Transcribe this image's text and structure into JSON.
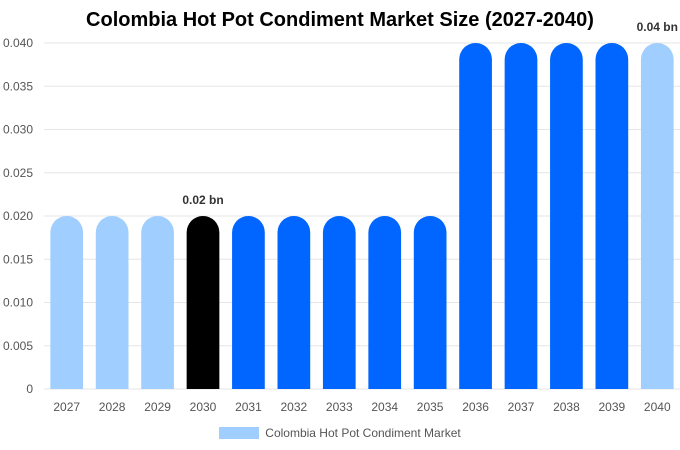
{
  "chart_data": {
    "type": "bar",
    "title": "Colombia Hot Pot Condiment Market Size (2027-2040)",
    "xlabel": "",
    "ylabel": "",
    "categories": [
      "2027",
      "2028",
      "2029",
      "2030",
      "2031",
      "2032",
      "2033",
      "2034",
      "2035",
      "2036",
      "2037",
      "2038",
      "2039",
      "2040"
    ],
    "series": [
      {
        "name": "Colombia Hot Pot Condiment Market",
        "values": [
          0.02,
          0.02,
          0.02,
          0.02,
          0.02,
          0.02,
          0.02,
          0.02,
          0.02,
          0.04,
          0.04,
          0.04,
          0.04,
          0.04
        ]
      }
    ],
    "bar_colors": [
      "#a0cfff",
      "#a0cfff",
      "#a0cfff",
      "#000000",
      "#0066ff",
      "#0066ff",
      "#0066ff",
      "#0066ff",
      "#0066ff",
      "#0066ff",
      "#0066ff",
      "#0066ff",
      "#0066ff",
      "#a0cfff"
    ],
    "ylim": [
      0,
      0.04
    ],
    "yticks": [
      "0",
      "0.005",
      "0.010",
      "0.015",
      "0.020",
      "0.025",
      "0.030",
      "0.035",
      "0.040"
    ],
    "annotations": [
      {
        "category": "2030",
        "text": "0.02 bn"
      },
      {
        "category": "2040",
        "text": "0.04 bn"
      }
    ],
    "legend": {
      "label": "Colombia Hot Pot Condiment Market",
      "color": "#a0cfff",
      "position": "bottom"
    }
  }
}
